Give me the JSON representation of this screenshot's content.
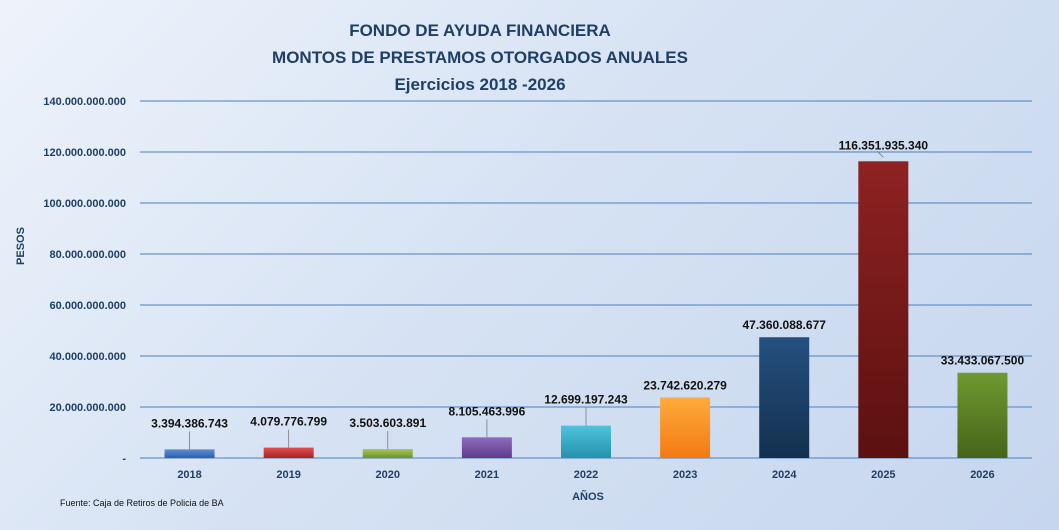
{
  "chart_data": {
    "type": "bar",
    "title": [
      "FONDO DE AYUDA FINANCIERA",
      "MONTOS DE PRESTAMOS OTORGADOS ANUALES",
      "Ejercicios 2018 -2026"
    ],
    "xlabel": "AÑOS",
    "ylabel": "PESOS",
    "ylim": [
      0,
      140000000000
    ],
    "yticks": [
      0,
      20000000000,
      40000000000,
      60000000000,
      80000000000,
      100000000000,
      120000000000,
      140000000000
    ],
    "ytick_labels": [
      "-",
      "20.000.000.000",
      "40.000.000.000",
      "60.000.000.000",
      "80.000.000.000",
      "100.000.000.000",
      "120.000.000.000",
      "140.000.000.000"
    ],
    "grid": true,
    "categories": [
      "2018",
      "2019",
      "2020",
      "2021",
      "2022",
      "2023",
      "2024",
      "2025",
      "2026"
    ],
    "values": [
      3394386743,
      4079776799,
      3503603891,
      8105463996,
      12699197243,
      23742620279,
      47360088677,
      116351935340,
      33433067500
    ],
    "data_labels": [
      "3.394.386.743",
      "4.079.776.799",
      "3.503.603.891",
      "8.105.463.996",
      "12.699.197.243",
      "23.742.620.279",
      "47.360.088.677",
      "116.351.935.340",
      "33.433.067.500"
    ],
    "colors": [
      [
        "#5b8fd9",
        "#2f5ea8"
      ],
      [
        "#e05050",
        "#a82424"
      ],
      [
        "#a6c85a",
        "#6f9028"
      ],
      [
        "#8f6bbf",
        "#5c3d8a"
      ],
      [
        "#4fc3dc",
        "#2592ad"
      ],
      [
        "#ffab3d",
        "#f27a12"
      ],
      [
        "#25507f",
        "#13304f"
      ],
      [
        "#8e2222",
        "#5c1010"
      ],
      [
        "#6f9a30",
        "#46641a"
      ]
    ],
    "source": "Fuente: Caja de Retiros de Policia de BA"
  }
}
